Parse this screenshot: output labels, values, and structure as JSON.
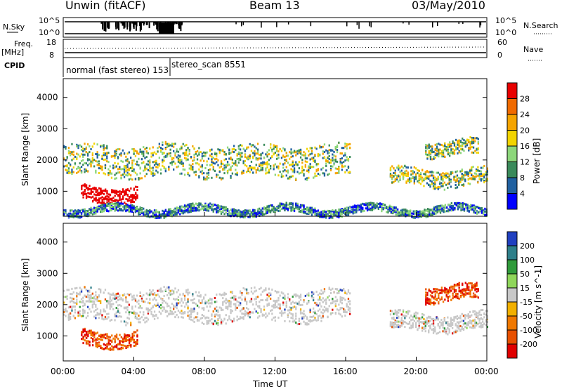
{
  "header": {
    "title_left": "Unwin (fitACF)",
    "title_mid": "Beam 13",
    "title_right": "03/May/2010"
  },
  "top_strips": {
    "nsky_label": "N.Sky",
    "nsearch_label": "N.Search",
    "nsky_ticks": [
      "10^5",
      "10^0"
    ],
    "nsearch_ticks": [
      "10^5",
      "10^0"
    ],
    "freq_label_1": "Freq.",
    "freq_label_2": "[MHz]",
    "freq_ticks": [
      "18",
      "8"
    ],
    "nave_label": "Nave",
    "nave_ticks": [
      "60",
      "0"
    ],
    "cpid_label": "CPID",
    "cpid_entries": [
      "normal (fast stereo) 153",
      "stereo_scan 8551"
    ]
  },
  "chart_data": [
    {
      "type": "heatmap",
      "panel": "power",
      "xlabel": "",
      "ylabel": "Slant Range [km]",
      "x_ticks": [
        "00:00",
        "04:00",
        "08:00",
        "12:00",
        "16:00",
        "20:00",
        "00:00"
      ],
      "y_ticks": [
        "1000",
        "2000",
        "3000",
        "4000"
      ],
      "ylim": [
        200,
        4600
      ],
      "colorbar_label": "Power [dB]",
      "colorbar_ticks": [
        "4",
        "8",
        "12",
        "16",
        "20",
        "24",
        "28"
      ],
      "colorbar_colors": [
        "#0000ff",
        "#2060a0",
        "#3a8a5a",
        "#8cd67a",
        "#f2d400",
        "#f5a400",
        "#f06a00",
        "#e80000"
      ],
      "echo_bands": [
        {
          "t": [
            0,
            16.2
          ],
          "range_km": [
            1450,
            2450
          ],
          "level": "12-20"
        },
        {
          "t": [
            1.0,
            4.2
          ],
          "range_km": [
            650,
            1150
          ],
          "level": "24-28"
        },
        {
          "t": [
            18.5,
            24
          ],
          "range_km": [
            1150,
            1700
          ],
          "level": "8-16"
        },
        {
          "t": [
            20.5,
            23.5
          ],
          "range_km": [
            2100,
            2600
          ],
          "level": "12-20"
        },
        {
          "t": [
            0,
            24
          ],
          "range_km": [
            250,
            500
          ],
          "level": "4-12"
        }
      ]
    },
    {
      "type": "heatmap",
      "panel": "velocity",
      "xlabel": "Time UT",
      "ylabel": "Slant Range [km]",
      "x_ticks": [
        "00:00",
        "04:00",
        "08:00",
        "12:00",
        "16:00",
        "20:00",
        "00:00"
      ],
      "y_ticks": [
        "1000",
        "2000",
        "3000",
        "4000"
      ],
      "ylim": [
        200,
        4600
      ],
      "colorbar_label": "Velocity [m s^-1]",
      "colorbar_ticks": [
        "200",
        "100",
        "50",
        "15",
        "-15",
        "-50",
        "-100",
        "-200"
      ],
      "colorbar_colors": [
        "#2040c0",
        "#2e7f8a",
        "#2f9a3a",
        "#8fd65a",
        "#c8c8c8",
        "#f2b000",
        "#f07800",
        "#e85000",
        "#e00000"
      ],
      "echo_bands": [
        {
          "t": [
            0,
            16.2
          ],
          "range_km": [
            1450,
            2450
          ],
          "level": "-15..15"
        },
        {
          "t": [
            1.0,
            4.2
          ],
          "range_km": [
            650,
            1150
          ],
          "level": "-100..-200"
        },
        {
          "t": [
            18.5,
            24
          ],
          "range_km": [
            1150,
            1700
          ],
          "level": "-15..15"
        },
        {
          "t": [
            20.5,
            23.5
          ],
          "range_km": [
            2100,
            2600
          ],
          "level": "-100..-200"
        }
      ]
    }
  ]
}
